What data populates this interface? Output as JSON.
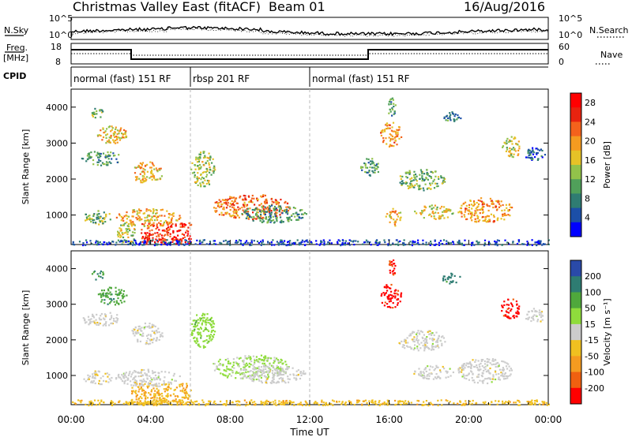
{
  "header": {
    "title": "Christmas Valley East (fitACF)",
    "beam": "Beam 01",
    "date": "16/Aug/2016"
  },
  "noise_panel": {
    "left_label": "N.Sky",
    "right_label": "N.Search",
    "left_ticks": [
      "10^5",
      "10^0"
    ],
    "right_ticks": [
      "10^5",
      "10^0"
    ]
  },
  "freq_panel": {
    "left_label_line1": "Freq.",
    "left_label_line2": "[MHz]",
    "right_label": "Nave",
    "left_ticks": [
      "18",
      "8"
    ],
    "right_ticks": [
      "60",
      "0"
    ]
  },
  "cpid": {
    "label": "CPID",
    "segments": [
      {
        "name": "normal (fast) 151 RF",
        "start_hour": 0,
        "end_hour": 6
      },
      {
        "name": "rbsp 201 RF",
        "start_hour": 6,
        "end_hour": 12
      },
      {
        "name": "normal (fast) 151 RF",
        "start_hour": 12,
        "end_hour": 24
      }
    ]
  },
  "chart_data": [
    {
      "type": "heatmap",
      "title": "",
      "xlabel": "Time UT",
      "ylabel": "Slant Range [km]",
      "xlim": [
        0,
        24
      ],
      "ylim": [
        180,
        4500
      ],
      "x_tick_labels": [
        "00:00",
        "04:00",
        "08:00",
        "12:00",
        "16:00",
        "20:00",
        "00:00"
      ],
      "y_tick_labels": [
        "1000",
        "2000",
        "3000",
        "4000"
      ],
      "y_ticks": [
        1000,
        2000,
        3000,
        4000
      ],
      "colorbar": {
        "label": "Power [dB]",
        "min": 0,
        "max": 30,
        "tick_labels": [
          "4",
          "8",
          "12",
          "16",
          "20",
          "24",
          "28"
        ],
        "ticks": [
          4,
          8,
          12,
          16,
          20,
          24,
          28
        ],
        "colors": [
          "#0000ff",
          "#1c4fa8",
          "#2f7c72",
          "#50a05a",
          "#92c24a",
          "#e6c227",
          "#f59b20",
          "#f4621c",
          "#e8230f",
          "#ff0000"
        ]
      },
      "echo_regions": [
        {
          "t_start": 0.6,
          "t_end": 2.0,
          "range_start": 750,
          "range_end": 1150,
          "level": 12
        },
        {
          "t_start": 1.0,
          "t_end": 1.6,
          "range_start": 3700,
          "range_end": 4000,
          "level": 12
        },
        {
          "t_start": 1.3,
          "t_end": 2.8,
          "range_start": 3000,
          "range_end": 3500,
          "level": 18
        },
        {
          "t_start": 0.5,
          "t_end": 2.5,
          "range_start": 2400,
          "range_end": 2800,
          "level": 10
        },
        {
          "t_start": 3.0,
          "t_end": 4.6,
          "range_start": 1900,
          "range_end": 2500,
          "level": 18
        },
        {
          "t_start": 2.3,
          "t_end": 3.2,
          "range_start": 250,
          "range_end": 800,
          "level": 14
        },
        {
          "t_start": 3.5,
          "t_end": 6.0,
          "range_start": 200,
          "range_end": 800,
          "level": 26
        },
        {
          "t_start": 2.2,
          "t_end": 5.5,
          "range_start": 700,
          "range_end": 1200,
          "level": 18
        },
        {
          "t_start": 6.0,
          "t_end": 7.2,
          "range_start": 1800,
          "range_end": 2800,
          "level": 14
        },
        {
          "t_start": 7.0,
          "t_end": 11.0,
          "range_start": 900,
          "range_end": 1600,
          "level": 22
        },
        {
          "t_start": 8.5,
          "t_end": 11.8,
          "range_start": 800,
          "range_end": 1300,
          "level": 10
        },
        {
          "t_start": 15.5,
          "t_end": 16.6,
          "range_start": 2900,
          "range_end": 3600,
          "level": 20
        },
        {
          "t_start": 15.9,
          "t_end": 16.3,
          "range_start": 3700,
          "range_end": 4300,
          "level": 10
        },
        {
          "t_start": 14.5,
          "t_end": 15.5,
          "range_start": 2100,
          "range_end": 2600,
          "level": 10
        },
        {
          "t_start": 16.4,
          "t_end": 18.8,
          "range_start": 1700,
          "range_end": 2300,
          "level": 12
        },
        {
          "t_start": 15.8,
          "t_end": 16.6,
          "range_start": 700,
          "range_end": 1200,
          "level": 18
        },
        {
          "t_start": 17.2,
          "t_end": 19.2,
          "range_start": 900,
          "range_end": 1300,
          "level": 16
        },
        {
          "t_start": 19.4,
          "t_end": 22.2,
          "range_start": 800,
          "range_end": 1500,
          "level": 20
        },
        {
          "t_start": 21.6,
          "t_end": 22.6,
          "range_start": 2600,
          "range_end": 3200,
          "level": 16
        },
        {
          "t_start": 22.8,
          "t_end": 23.8,
          "range_start": 2500,
          "range_end": 2900,
          "level": 6
        },
        {
          "t_start": 18.6,
          "t_end": 19.6,
          "range_start": 3600,
          "range_end": 3900,
          "level": 8
        },
        {
          "t_start": 0.0,
          "t_end": 24.0,
          "range_start": 180,
          "range_end": 330,
          "level": 4
        }
      ]
    },
    {
      "type": "heatmap",
      "title": "",
      "xlabel": "Time UT",
      "ylabel": "Slant Range [km]",
      "xlim": [
        0,
        24
      ],
      "ylim": [
        180,
        4500
      ],
      "x_tick_labels": [
        "00:00",
        "04:00",
        "08:00",
        "12:00",
        "16:00",
        "20:00",
        "00:00"
      ],
      "y_tick_labels": [
        "1000",
        "2000",
        "3000",
        "4000"
      ],
      "y_ticks": [
        1000,
        2000,
        3000,
        4000
      ],
      "colorbar": {
        "label": "Velocity [m s⁻¹]",
        "min": -250,
        "max": 250,
        "tick_labels": [
          "200",
          "100",
          "50",
          "15",
          "-15",
          "-50",
          "-100",
          "-200"
        ],
        "colors": [
          "#2a4aa8",
          "#2e7c72",
          "#4fa83c",
          "#8fdc3c",
          "#cccccc",
          "#f0c020",
          "#f59b20",
          "#f06010",
          "#ff0000"
        ]
      },
      "echo_regions": [
        {
          "t_start": 0.6,
          "t_end": 2.0,
          "range_start": 750,
          "range_end": 1150,
          "level": -10
        },
        {
          "t_start": 1.0,
          "t_end": 1.6,
          "range_start": 3700,
          "range_end": 4000,
          "level": 150
        },
        {
          "t_start": 1.3,
          "t_end": 2.8,
          "range_start": 3000,
          "range_end": 3500,
          "level": 120
        },
        {
          "t_start": 0.5,
          "t_end": 2.5,
          "range_start": 2400,
          "range_end": 2800,
          "level": 0
        },
        {
          "t_start": 3.0,
          "t_end": 4.6,
          "range_start": 1900,
          "range_end": 2500,
          "level": 0
        },
        {
          "t_start": 3.0,
          "t_end": 6.0,
          "range_start": 200,
          "range_end": 800,
          "level": -80
        },
        {
          "t_start": 2.2,
          "t_end": 5.5,
          "range_start": 700,
          "range_end": 1200,
          "level": 0
        },
        {
          "t_start": 6.0,
          "t_end": 7.2,
          "range_start": 1800,
          "range_end": 2800,
          "level": 60
        },
        {
          "t_start": 7.0,
          "t_end": 11.0,
          "range_start": 900,
          "range_end": 1600,
          "level": 40
        },
        {
          "t_start": 8.5,
          "t_end": 11.8,
          "range_start": 800,
          "range_end": 1300,
          "level": 0
        },
        {
          "t_start": 15.5,
          "t_end": 16.6,
          "range_start": 2900,
          "range_end": 3600,
          "level": -220
        },
        {
          "t_start": 15.9,
          "t_end": 16.3,
          "range_start": 3700,
          "range_end": 4300,
          "level": -200
        },
        {
          "t_start": 16.4,
          "t_end": 18.8,
          "range_start": 1700,
          "range_end": 2300,
          "level": 0
        },
        {
          "t_start": 17.2,
          "t_end": 19.2,
          "range_start": 900,
          "range_end": 1300,
          "level": 0
        },
        {
          "t_start": 19.4,
          "t_end": 22.2,
          "range_start": 800,
          "range_end": 1500,
          "level": 0
        },
        {
          "t_start": 21.6,
          "t_end": 22.6,
          "range_start": 2600,
          "range_end": 3200,
          "level": -220
        },
        {
          "t_start": 22.8,
          "t_end": 23.8,
          "range_start": 2500,
          "range_end": 2900,
          "level": 0
        },
        {
          "t_start": 18.6,
          "t_end": 19.6,
          "range_start": 3600,
          "range_end": 3900,
          "level": 160
        },
        {
          "t_start": 0.0,
          "t_end": 24.0,
          "range_start": 180,
          "range_end": 330,
          "level": -60
        }
      ]
    }
  ]
}
